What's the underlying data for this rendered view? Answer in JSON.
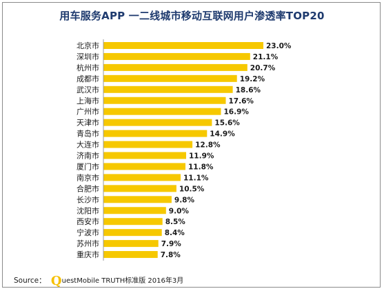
{
  "chart_data": {
    "type": "bar",
    "orientation": "horizontal",
    "title": "用车服务APP 一二线城市移动互联网用户渗透率TOP20",
    "categories": [
      "北京市",
      "深圳市",
      "杭州市",
      "成都市",
      "武汉市",
      "上海市",
      "广州市",
      "天津市",
      "青岛市",
      "大连市",
      "济南市",
      "厦门市",
      "南京市",
      "合肥市",
      "长沙市",
      "沈阳市",
      "西安市",
      "宁波市",
      "苏州市",
      "重庆市"
    ],
    "values": [
      23.0,
      21.1,
      20.7,
      19.2,
      18.6,
      17.6,
      16.9,
      15.6,
      14.9,
      12.8,
      11.9,
      11.8,
      11.1,
      10.5,
      9.8,
      9.0,
      8.5,
      8.4,
      7.9,
      7.8
    ],
    "value_labels": [
      "23.0%",
      "21.1%",
      "20.7%",
      "19.2%",
      "18.6%",
      "17.6%",
      "16.9%",
      "15.6%",
      "14.9%",
      "12.8%",
      "11.9%",
      "11.8%",
      "11.1%",
      "10.5%",
      "9.8%",
      "9.0%",
      "8.5%",
      "8.4%",
      "7.9%",
      "7.8%"
    ],
    "bar_color": "#f6c800",
    "title_color": "#1e3a6e",
    "grid": false,
    "legend": "none"
  },
  "source": {
    "prefix": "Source：",
    "logo_letter": "Q",
    "brand_rest": "uestMobile TRUTH标准版 2016年3月"
  }
}
